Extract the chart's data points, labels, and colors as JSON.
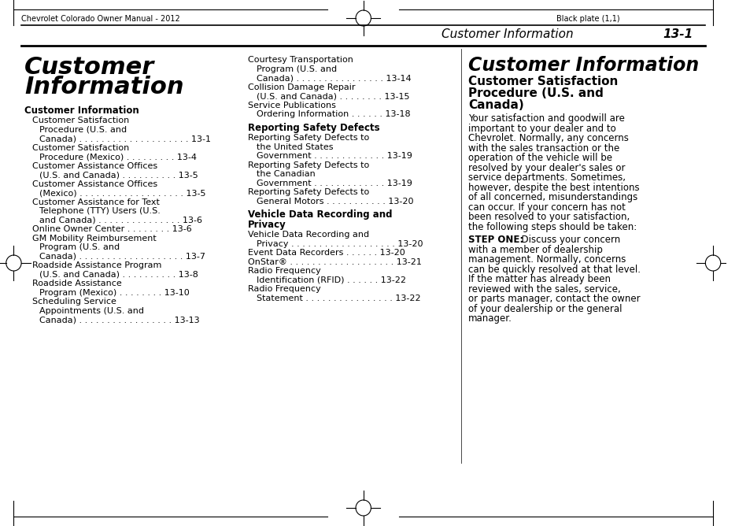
{
  "bg_color": "#ffffff",
  "header_left": "Chevrolet Colorado Owner Manual - 2012",
  "header_right": "Black plate (1,1)",
  "section_title_right": "Customer Information",
  "section_number_right": "13-1",
  "left_title": "Customer\nInformation",
  "left_subtitle": "Customer Information",
  "left_entries": [
    [
      "Customer Satisfaction",
      "Procedure (U.S. and",
      "Canada) . . . . . . . . . . . . . . . . . . . . 13-1"
    ],
    [
      "Customer Satisfaction",
      "Procedure (Mexico) . . . . . . . . . 13-4"
    ],
    [
      "Customer Assistance Offices",
      "(U.S. and Canada) . . . . . . . . . . 13-5"
    ],
    [
      "Customer Assistance Offices",
      "(Mexico) . . . . . . . . . . . . . . . . . . . . 13-5"
    ],
    [
      "Customer Assistance for Text",
      "Telephone (TTY) Users (U.S.",
      "and Canada) . . . . . . . . . . . . . . . 13-6"
    ],
    [
      "Online Owner Center . . . . . . . . 13-6"
    ],
    [
      "GM Mobility Reimbursement",
      "Program (U.S. and",
      "Canada) . . . . . . . . . . . . . . . . . . . . 13-7"
    ],
    [
      "Roadside Assistance Program",
      "(U.S. and Canada) . . . . . . . . . . 13-8"
    ],
    [
      "Roadside Assistance",
      "Program (Mexico) . . . . . . . . . 13-10"
    ],
    [
      "Scheduling Service",
      "Appointments (U.S. and",
      "Canada) . . . . . . . . . . . . . . . . . . . . 13-13"
    ]
  ],
  "middle_entries_top": [
    [
      "Courtesy Transportation",
      "Program (U.S. and",
      "Canada) . . . . . . . . . . . . . . . . 13-14"
    ],
    [
      "Collision Damage Repair",
      "(U.S. and Canada) . . . . . . . . 13-15"
    ],
    [
      "Service Publications",
      "Ordering Information . . . . . . 13-18"
    ]
  ],
  "middle_section1_title": "Reporting Safety Defects",
  "middle_section1_entries": [
    [
      "Reporting Safety Defects to",
      "the United States",
      "Government . . . . . . . . . . . . . . . 13-19"
    ],
    [
      "Reporting Safety Defects to",
      "the Canadian",
      "Government . . . . . . . . . . . . . . . 13-19"
    ],
    [
      "Reporting Safety Defects to",
      "General Motors . . . . . . . . . . . 13-20"
    ]
  ],
  "middle_section2_title": "Vehicle Data Recording and\nPrivacy",
  "middle_section2_entries": [
    [
      "Vehicle Data Recording and",
      "Privacy . . . . . . . . . . . . . . . . . . . . . 13-20"
    ],
    [
      "Event Data Recorders . . . . . . 13-20"
    ],
    [
      "OnStar® . . . . . . . . . . . . . . . . . . . . . 13-21"
    ],
    [
      "Radio Frequency",
      "Identification (RFID) . . . . . . . 13-22"
    ],
    [
      "Radio Frequency",
      "Statement . . . . . . . . . . . . . . . . . . 13-22"
    ]
  ],
  "right_title": "Customer Information",
  "right_subtitle": "Customer Satisfaction\nProcedure (U.S. and\nCanada)",
  "right_body": "Your satisfaction and goodwill are important to your dealer and to Chevrolet. Normally, any concerns with the sales transaction or the operation of the vehicle will be resolved by your dealer's sales or service departments. Sometimes, however, despite the best intentions of all concerned, misunderstandings can occur. If your concern has not been resolved to your satisfaction, the following steps should be taken:",
  "right_step": "STEP ONE:",
  "right_step_body": "Discuss your concern with a member of dealership management. Normally, concerns can be quickly resolved at that level. If the matter has already been reviewed with the sales, service, or parts manager, contact the owner of your dealership or the general manager."
}
